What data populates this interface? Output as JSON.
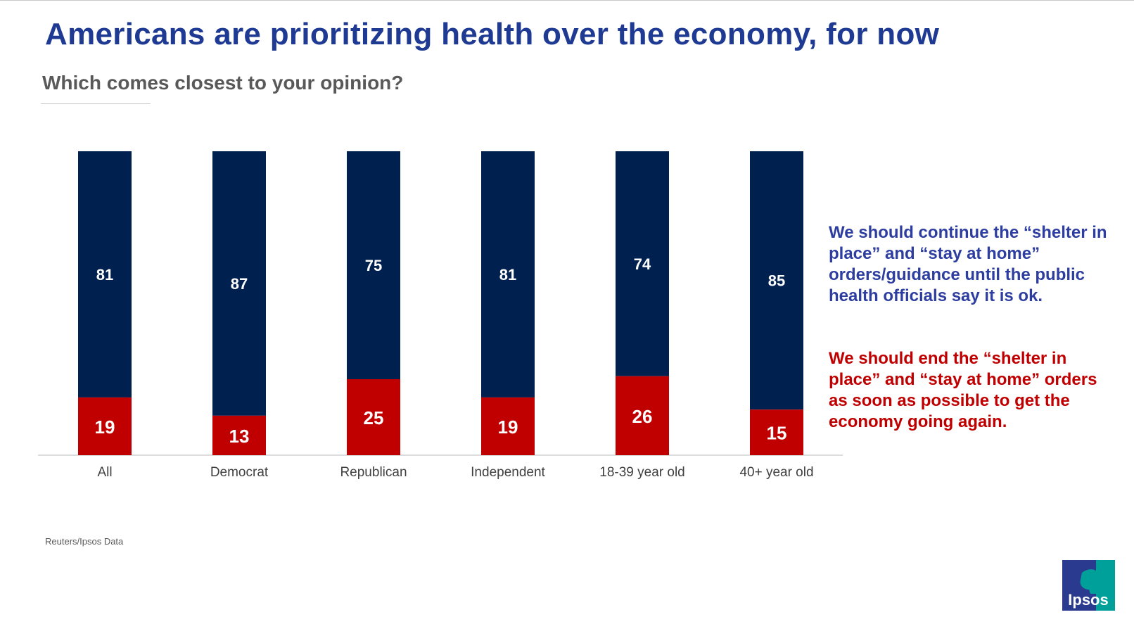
{
  "title": "Americans are prioritizing health over the economy, for now",
  "subtitle": "Which comes closest to your opinion?",
  "legend": {
    "continue": "We should continue the “shelter in place” and “stay at home” orders/guidance until the public health officials say it is ok.",
    "end": "We should end the “shelter in place” and “stay at home” orders as soon as possible to get the economy going again."
  },
  "source": "Reuters/Ipsos Data",
  "logo_text": "Ipsos",
  "colors": {
    "continue": "#002050",
    "end": "#c00000",
    "title": "#1f3a93"
  },
  "chart_data": {
    "type": "bar",
    "stacked": true,
    "categories": [
      "All",
      "Democrat",
      "Republican",
      "Independent",
      "18-39 year old",
      "40+ year old"
    ],
    "series": [
      {
        "name": "We should end the “shelter in place” and “stay at home” orders as soon as possible to get the economy going again.",
        "values": [
          19,
          13,
          25,
          19,
          26,
          15
        ]
      },
      {
        "name": "We should continue the “shelter in place” and “stay at home” orders/guidance until the public health officials say it is ok.",
        "values": [
          81,
          87,
          75,
          81,
          74,
          85
        ]
      }
    ],
    "ylim": [
      0,
      100
    ],
    "title": "",
    "xlabel": "",
    "ylabel": ""
  }
}
